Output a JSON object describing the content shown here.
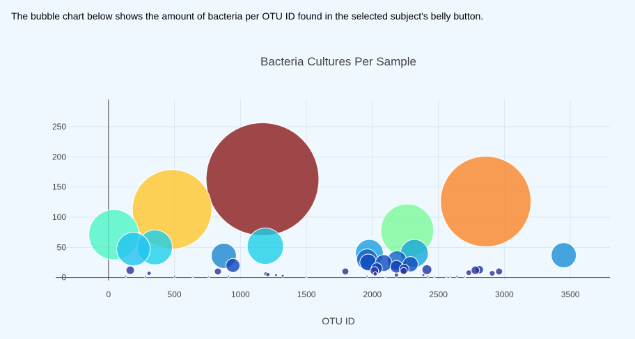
{
  "intro_text": "The bubble chart below shows the amount of bacteria per OTU ID found in the selected subject's belly button.",
  "colors": {
    "background": "#f0f8ff",
    "grid": "#dde6ee",
    "axis": "#444444",
    "tick_text": "#444444",
    "title_text": "#444444"
  },
  "chart_data": {
    "type": "scatter",
    "title": "Bacteria Cultures Per Sample",
    "xlabel": "OTU ID",
    "ylabel": "",
    "xlim": [
      -400,
      3800
    ],
    "ylim": [
      -5,
      295
    ],
    "x_ticks": [
      0,
      500,
      1000,
      1500,
      2000,
      2500,
      3000,
      3500
    ],
    "y_ticks": [
      0,
      50,
      100,
      150,
      200,
      250
    ],
    "grid": true,
    "legend": "none",
    "marker_size_encodes": "y value",
    "points": [
      {
        "x": 1167,
        "y": 163,
        "r": 81,
        "color": "#8b1a1a"
      },
      {
        "x": 2859,
        "y": 126,
        "r": 65,
        "color": "#fb8428"
      },
      {
        "x": 482,
        "y": 113,
        "r": 57,
        "color": "#fec52a"
      },
      {
        "x": 2264,
        "y": 78,
        "r": 38,
        "color": "#7af99b"
      },
      {
        "x": 41,
        "y": 71,
        "r": 36,
        "color": "#4ef4c6"
      },
      {
        "x": 1189,
        "y": 52,
        "r": 26,
        "color": "#1ed0e8"
      },
      {
        "x": 352,
        "y": 50,
        "r": 25,
        "color": "#1ed0e8"
      },
      {
        "x": 189,
        "y": 47,
        "r": 24,
        "color": "#22c2ef"
      },
      {
        "x": 1977,
        "y": 40,
        "r": 20,
        "color": "#1a9fe0"
      },
      {
        "x": 2318,
        "y": 40,
        "r": 20,
        "color": "#16a8d8"
      },
      {
        "x": 3450,
        "y": 37,
        "r": 18,
        "color": "#1a8fd6"
      },
      {
        "x": 874,
        "y": 36,
        "r": 18,
        "color": "#1a86d0"
      },
      {
        "x": 1960,
        "y": 30,
        "r": 15,
        "color": "#1462c8"
      },
      {
        "x": 2186,
        "y": 28,
        "r": 14,
        "color": "#1260c4"
      },
      {
        "x": 1968,
        "y": 25,
        "r": 12,
        "color": "#0f4cbd"
      },
      {
        "x": 2085,
        "y": 24,
        "r": 12,
        "color": "#0f4cbd"
      },
      {
        "x": 2288,
        "y": 22,
        "r": 11,
        "color": "#0f4cbd"
      },
      {
        "x": 943,
        "y": 20,
        "r": 10,
        "color": "#1244b8"
      },
      {
        "x": 2182,
        "y": 18,
        "r": 9,
        "color": "#0e3fb5"
      },
      {
        "x": 2033,
        "y": 15,
        "r": 8,
        "color": "#0d38af"
      },
      {
        "x": 2240,
        "y": 14,
        "r": 7,
        "color": "#0d38af"
      },
      {
        "x": 2413,
        "y": 13,
        "r": 7,
        "color": "#1a35a5"
      },
      {
        "x": 2810,
        "y": 13,
        "r": 6,
        "color": "#1a35a5"
      },
      {
        "x": 165,
        "y": 12,
        "r": 6,
        "color": "#2a2f9c"
      },
      {
        "x": 2780,
        "y": 12,
        "r": 6,
        "color": "#2a2f9c"
      },
      {
        "x": 2015,
        "y": 11,
        "r": 6,
        "color": "#2a2f9c"
      },
      {
        "x": 2237,
        "y": 11,
        "r": 5,
        "color": "#2a2f9c"
      },
      {
        "x": 1795,
        "y": 10,
        "r": 5,
        "color": "#2a2f9c"
      },
      {
        "x": 829,
        "y": 10,
        "r": 5,
        "color": "#2a2f9c"
      },
      {
        "x": 2960,
        "y": 10,
        "r": 5,
        "color": "#2a2f9c"
      },
      {
        "x": 2730,
        "y": 8,
        "r": 4,
        "color": "#2a2f9c"
      },
      {
        "x": 2908,
        "y": 7,
        "r": 4,
        "color": "#2a2f9c"
      },
      {
        "x": 308,
        "y": 7,
        "r": 3,
        "color": "#2a2f9c"
      },
      {
        "x": 2021,
        "y": 6,
        "r": 3,
        "color": "#2a2f9c"
      },
      {
        "x": 1193,
        "y": 6,
        "r": 3,
        "color": "#2a2f9c"
      },
      {
        "x": 1208,
        "y": 5,
        "r": 3,
        "color": "#2a2f9c"
      },
      {
        "x": 2182,
        "y": 4,
        "r": 3,
        "color": "#2a2f9c"
      },
      {
        "x": 1270,
        "y": 4,
        "r": 2,
        "color": "#2a2f9c"
      },
      {
        "x": 2386,
        "y": 4,
        "r": 2,
        "color": "#2a2f9c"
      },
      {
        "x": 1320,
        "y": 3,
        "r": 2,
        "color": "#2a2f9c"
      },
      {
        "x": 130,
        "y": 2,
        "r": 1.5,
        "color": "#2a2f9c"
      },
      {
        "x": 280,
        "y": 2,
        "r": 1.5,
        "color": "#2a2f9c"
      },
      {
        "x": 500,
        "y": 2,
        "r": 1.5,
        "color": "#2a2f9c"
      },
      {
        "x": 640,
        "y": 1,
        "r": 1.2,
        "color": "#2a2f9c"
      },
      {
        "x": 760,
        "y": 1,
        "r": 1.2,
        "color": "#2a2f9c"
      },
      {
        "x": 910,
        "y": 2,
        "r": 1.5,
        "color": "#2a2f9c"
      },
      {
        "x": 1500,
        "y": 1,
        "r": 1.2,
        "color": "#2a2f9c"
      },
      {
        "x": 1960,
        "y": 2,
        "r": 1.5,
        "color": "#2a2f9c"
      },
      {
        "x": 2100,
        "y": 1,
        "r": 1.2,
        "color": "#2a2f9c"
      },
      {
        "x": 2420,
        "y": 2,
        "r": 1.5,
        "color": "#2a2f9c"
      },
      {
        "x": 2470,
        "y": 1,
        "r": 1.2,
        "color": "#2a2f9c"
      },
      {
        "x": 2560,
        "y": 1,
        "r": 1.2,
        "color": "#2a2f9c"
      },
      {
        "x": 2590,
        "y": 1,
        "r": 1.2,
        "color": "#2a2f9c"
      },
      {
        "x": 2640,
        "y": 2,
        "r": 1.5,
        "color": "#2a2f9c"
      },
      {
        "x": 2700,
        "y": 1,
        "r": 1.2,
        "color": "#2a2f9c"
      }
    ]
  }
}
